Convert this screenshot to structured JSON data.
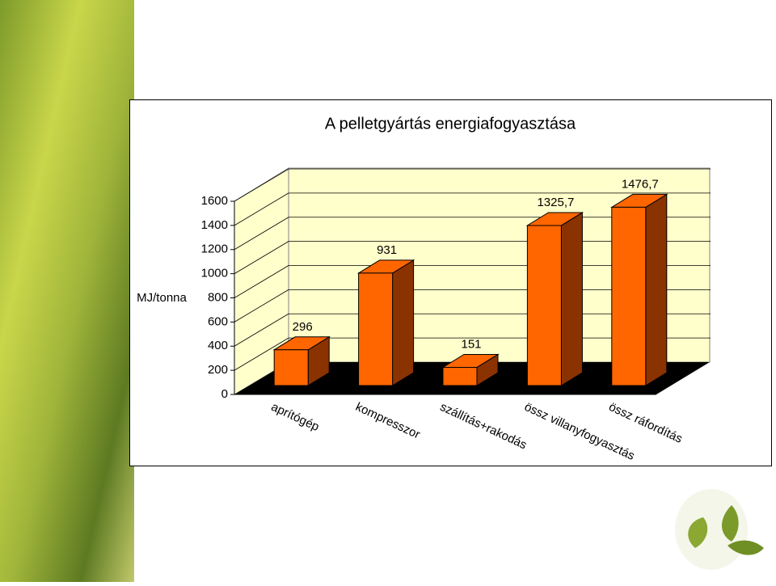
{
  "chart_data": {
    "type": "bar3d",
    "title": "A pelletgyártás energiafogyasztása",
    "y_label": "MJ/tonna",
    "categories": [
      "aprítógép",
      "kompresszor",
      "szállítás+rakodás",
      "össz villanyfogyasztás",
      "össz ráfordítás"
    ],
    "values": [
      296,
      931,
      151,
      1325.7,
      1476.7
    ],
    "value_labels": [
      "296",
      "931",
      "151",
      "1325,7",
      "1476,7"
    ],
    "color": "#ff6600",
    "ylim": [
      0,
      1600
    ],
    "yticks": [
      0,
      200,
      400,
      600,
      800,
      1000,
      1200,
      1400,
      1600
    ],
    "grid": true
  }
}
